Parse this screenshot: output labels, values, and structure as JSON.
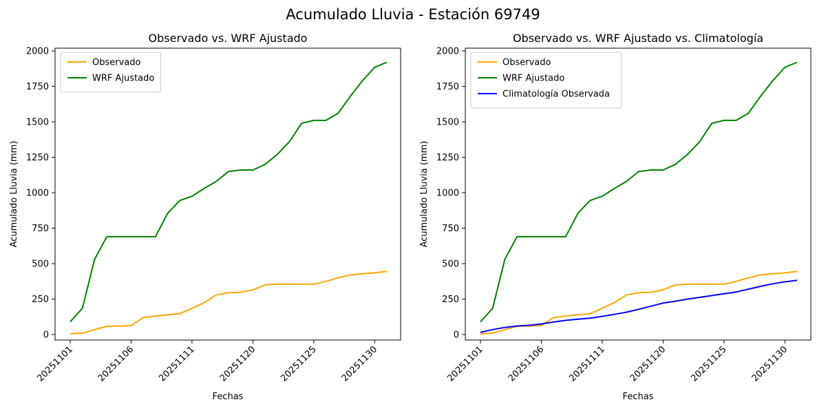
{
  "figure": {
    "title": "Acumulado Lluvia - Estación 69749"
  },
  "colors": {
    "observado": "#FFA500",
    "wrf_ajustado": "#008000",
    "climatologia": "#0000FF",
    "axes": "#000000",
    "legend_border": "#cccccc",
    "background": "#ffffff"
  },
  "chart_data": [
    {
      "type": "line",
      "title": "Observado vs. WRF Ajustado",
      "xlabel": "Fechas",
      "ylabel": "Acumulado Lluvia (mm)",
      "ylim": [
        0,
        2000
      ],
      "yticks": [
        0,
        250,
        500,
        750,
        1000,
        1250,
        1500,
        1750,
        2000
      ],
      "x_tick_labels": [
        "20251101",
        "20251106",
        "20251111",
        "20251120",
        "20251125",
        "20251130"
      ],
      "x_tick_indices": [
        0,
        5,
        10,
        15,
        20,
        25
      ],
      "n_points": 27,
      "grid": false,
      "legend_position": "upper left",
      "series": [
        {
          "name": "Observado",
          "color": "#FFA500",
          "values": [
            5,
            10,
            35,
            58,
            60,
            63,
            120,
            130,
            140,
            147,
            185,
            225,
            280,
            295,
            298,
            315,
            350,
            355,
            355,
            355,
            355,
            375,
            400,
            420,
            428,
            435,
            445
          ]
        },
        {
          "name": "WRF Ajustado",
          "color": "#008000",
          "values": [
            90,
            185,
            530,
            690,
            690,
            690,
            690,
            690,
            855,
            945,
            975,
            1030,
            1080,
            1150,
            1160,
            1160,
            1200,
            1270,
            1360,
            1490,
            1510,
            1510,
            1560,
            1680,
            1790,
            1885,
            1920
          ]
        }
      ]
    },
    {
      "type": "line",
      "title": "Observado vs. WRF Ajustado vs. Climatología",
      "xlabel": "Fechas",
      "ylabel": "Acumulado Lluvia (mm)",
      "ylim": [
        0,
        2000
      ],
      "yticks": [
        0,
        250,
        500,
        750,
        1000,
        1250,
        1500,
        1750,
        2000
      ],
      "x_tick_labels": [
        "20251101",
        "20251106",
        "20251111",
        "20251120",
        "20251125",
        "20251130"
      ],
      "x_tick_indices": [
        0,
        5,
        10,
        15,
        20,
        25
      ],
      "n_points": 27,
      "grid": false,
      "legend_position": "upper left",
      "series": [
        {
          "name": "Observado",
          "color": "#FFA500",
          "values": [
            5,
            10,
            35,
            58,
            60,
            63,
            120,
            130,
            140,
            147,
            185,
            225,
            280,
            295,
            298,
            315,
            350,
            355,
            355,
            355,
            355,
            375,
            400,
            420,
            428,
            435,
            445
          ]
        },
        {
          "name": "WRF Ajustado",
          "color": "#008000",
          "values": [
            90,
            185,
            530,
            690,
            690,
            690,
            690,
            690,
            855,
            945,
            975,
            1030,
            1080,
            1150,
            1160,
            1160,
            1200,
            1270,
            1360,
            1490,
            1510,
            1510,
            1560,
            1680,
            1790,
            1885,
            1920
          ]
        },
        {
          "name": "Climatología Observada",
          "color": "#0000FF",
          "values": [
            15,
            35,
            50,
            60,
            65,
            75,
            88,
            100,
            108,
            115,
            128,
            142,
            158,
            178,
            200,
            222,
            235,
            250,
            262,
            275,
            288,
            300,
            320,
            340,
            358,
            372,
            382
          ]
        }
      ]
    }
  ]
}
